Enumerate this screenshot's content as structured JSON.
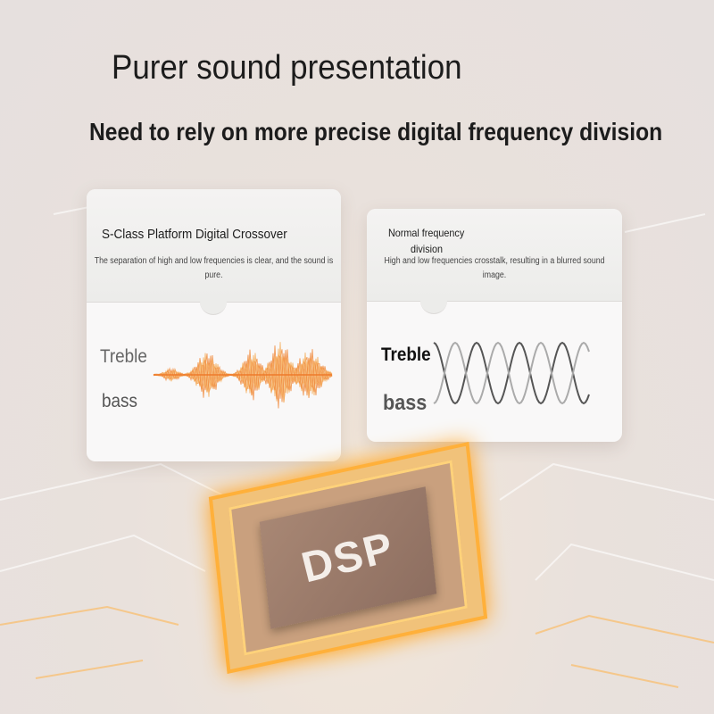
{
  "header": {
    "title": "Purer sound presentation",
    "subtitle": "Need to rely on more precise digital frequency division"
  },
  "left_card": {
    "title": "S-Class Platform Digital Crossover",
    "description": "The separation of high and low frequencies is clear, and the sound is pure.",
    "treble_label": "Treble",
    "bass_label": "bass",
    "wave_color": "#f08a3c"
  },
  "right_card": {
    "title_line1": "Normal frequency",
    "title_line2": "division",
    "description": "High and low frequencies crosstalk, resulting in a blurred sound image.",
    "treble_label": "Treble",
    "bass_label": "bass"
  },
  "chip": {
    "label": "DSP",
    "glow_color": "#ffa21f"
  }
}
